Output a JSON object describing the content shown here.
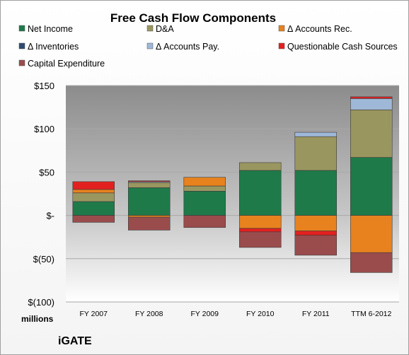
{
  "chart_data": {
    "type": "bar",
    "stacked": true,
    "title": "Free Cash Flow Components",
    "xlabel": "",
    "ylabel": "",
    "unit_label": "millions",
    "brand": "iGATE",
    "categories": [
      "FY 2007",
      "FY 2008",
      "FY 2009",
      "FY 2010",
      "FY 2011",
      "TTM 6-2012"
    ],
    "ylim": [
      -100,
      150
    ],
    "yticks": [
      150,
      100,
      50,
      0,
      -50,
      -100
    ],
    "ytick_labels": [
      "$150",
      "$100",
      "$50",
      "$-",
      "$(50)",
      "$(100)"
    ],
    "legend_position": "top",
    "series": [
      {
        "name": "Net Income",
        "color": "#1f7a4a",
        "values": [
          16,
          32,
          28,
          52,
          52,
          67
        ]
      },
      {
        "name": "D&A",
        "color": "#9a9660",
        "values": [
          10,
          6,
          6,
          9,
          39,
          55
        ]
      },
      {
        "name": "Δ Accounts Rec.",
        "color": "#e8821e",
        "values": [
          4,
          -2,
          10,
          -15,
          -18,
          -43
        ]
      },
      {
        "name": "Δ Inventories",
        "color": "#2e4b6e",
        "values": [
          0,
          0,
          0,
          0,
          0,
          0
        ]
      },
      {
        "name": "Δ Accounts Pay.",
        "color": "#9fb8d8",
        "values": [
          0,
          1,
          0,
          0,
          5,
          13
        ]
      },
      {
        "name": "Questionable Cash Sources",
        "color": "#e32020",
        "values": [
          9,
          1,
          0,
          -4,
          -5,
          2
        ]
      },
      {
        "name": "Capital Expenditure",
        "color": "#9a4c4c",
        "values": [
          -8,
          -15,
          -14,
          -18,
          -23,
          -23
        ]
      }
    ]
  }
}
